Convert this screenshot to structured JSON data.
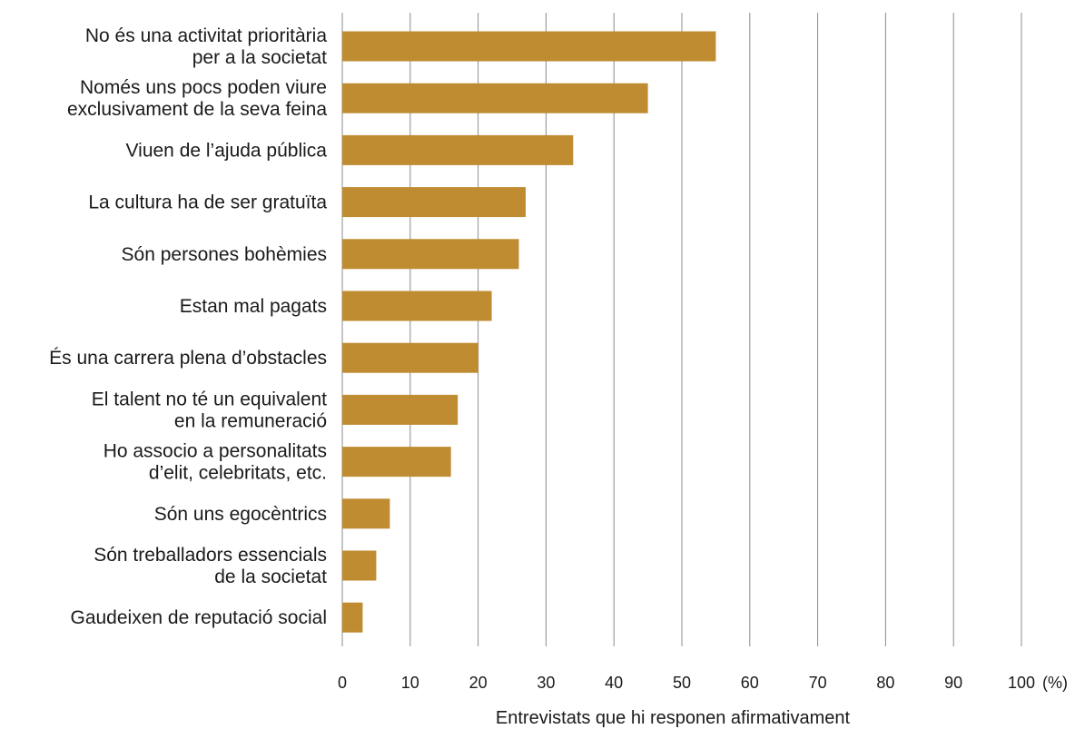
{
  "chart_data": {
    "type": "bar",
    "orientation": "horizontal",
    "categories": [
      [
        "No és una activitat prioritària",
        "per a la societat"
      ],
      [
        "Només uns pocs poden viure",
        "exclusivament de la seva feina"
      ],
      [
        "Viuen de l’ajuda pública"
      ],
      [
        "La cultura ha de ser gratuïta"
      ],
      [
        "Són persones bohèmies"
      ],
      [
        "Estan mal pagats"
      ],
      [
        "És una carrera plena d’obstacles"
      ],
      [
        "El talent no té un equivalent",
        "en la remuneració"
      ],
      [
        "Ho associo a personalitats",
        "d’elit, celebritats, etc."
      ],
      [
        "Són uns egocèntrics"
      ],
      [
        "Són treballadors essencials",
        "de la societat"
      ],
      [
        "Gaudeixen de reputació social"
      ]
    ],
    "values": [
      55,
      45,
      34,
      27,
      26,
      22,
      20,
      17,
      16,
      7,
      5,
      3
    ],
    "xlim": [
      0,
      100
    ],
    "xticks": [
      0,
      10,
      20,
      30,
      40,
      50,
      60,
      70,
      80,
      90,
      100
    ],
    "unit_label": "(%)",
    "xlabel": "Entrevistats que hi responen afirmativament",
    "ylabel": "",
    "title": "",
    "grid": "vertical",
    "legend": "none",
    "bar_color": "#bf8c32"
  }
}
